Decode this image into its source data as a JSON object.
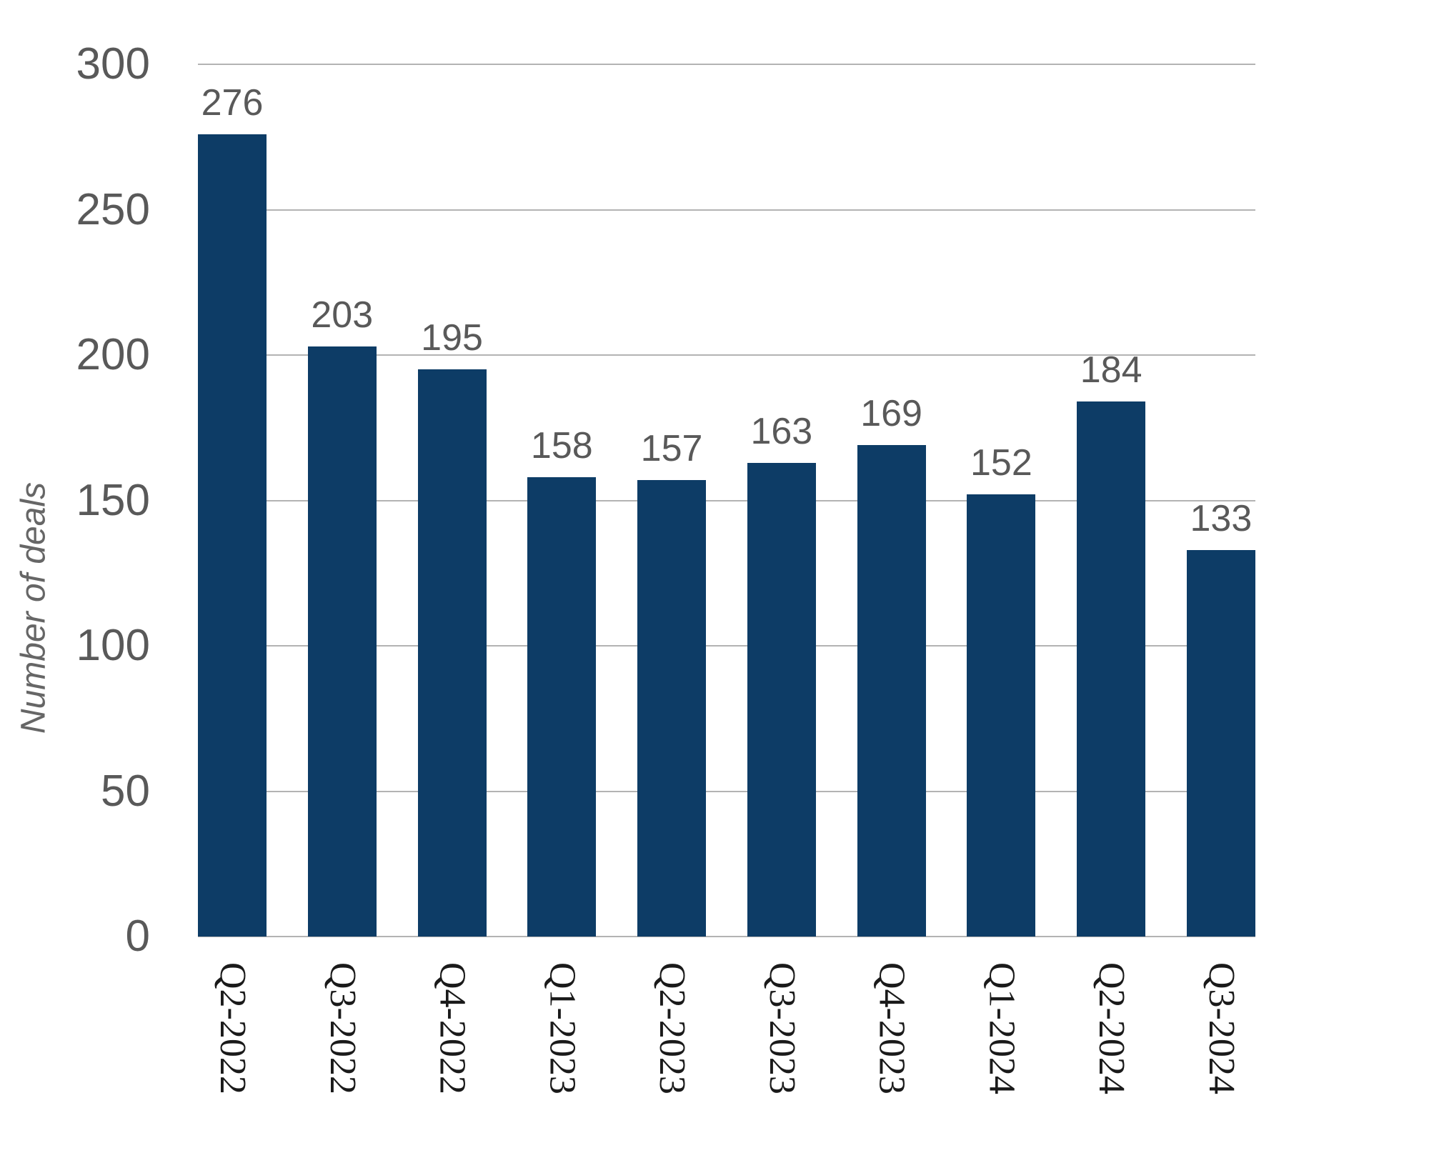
{
  "chart_data": {
    "type": "bar",
    "title": "",
    "xlabel": "",
    "ylabel": "Number of deals",
    "categories": [
      "Q2-2022",
      "Q3-2022",
      "Q4-2022",
      "Q1-2023",
      "Q2-2023",
      "Q3-2023",
      "Q4-2023",
      "Q1-2024",
      "Q2-2024",
      "Q3-2024"
    ],
    "values": [
      276,
      203,
      195,
      158,
      157,
      163,
      169,
      152,
      184,
      133
    ],
    "value_labels": [
      "276",
      "203",
      "195",
      "158",
      "157",
      "163",
      "169",
      "152",
      "184",
      "133"
    ],
    "ylim": [
      0,
      300
    ],
    "yticks": [
      0,
      50,
      100,
      150,
      200,
      250,
      300
    ],
    "ytick_labels": [
      "0",
      "50",
      "100",
      "150",
      "200",
      "250",
      "300"
    ],
    "grid": true,
    "legend_position": "none",
    "colors": {
      "bar": "#0d3c66",
      "gridline": "#b3b3b3",
      "ytick_label": "#595959",
      "value_label": "#595959",
      "xtick_label": "#1a1a1a",
      "axis_title": "#666666"
    }
  }
}
